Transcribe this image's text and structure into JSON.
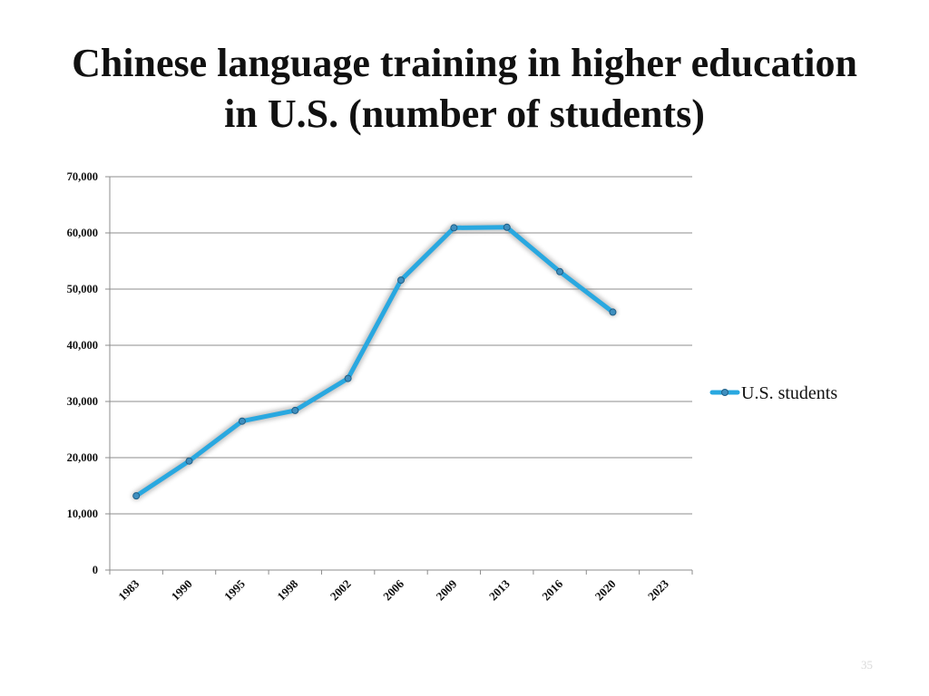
{
  "slide": {
    "title_line1": "Chinese language training in higher education",
    "title_line2": "in U.S. (number of students)",
    "page_number": "35"
  },
  "chart_data": {
    "type": "line",
    "title": "",
    "xlabel": "",
    "ylabel": "",
    "categories": [
      "1983",
      "1990",
      "1995",
      "1998",
      "2002",
      "2006",
      "2009",
      "2013",
      "2016",
      "2020",
      "2023"
    ],
    "series": [
      {
        "name": "U.S. students",
        "values": [
          13200,
          19400,
          26500,
          28400,
          34100,
          51600,
          60900,
          61000,
          53100,
          45900,
          null
        ],
        "color": "#29a8e0"
      }
    ],
    "ylim": [
      0,
      70000
    ],
    "y_ticks": [
      "0",
      "10,000",
      "20,000",
      "30,000",
      "40,000",
      "50,000",
      "60,000",
      "70,000"
    ],
    "y_tick_values": [
      0,
      10000,
      20000,
      30000,
      40000,
      50000,
      60000,
      70000
    ],
    "grid": true,
    "legend_position": "right"
  }
}
